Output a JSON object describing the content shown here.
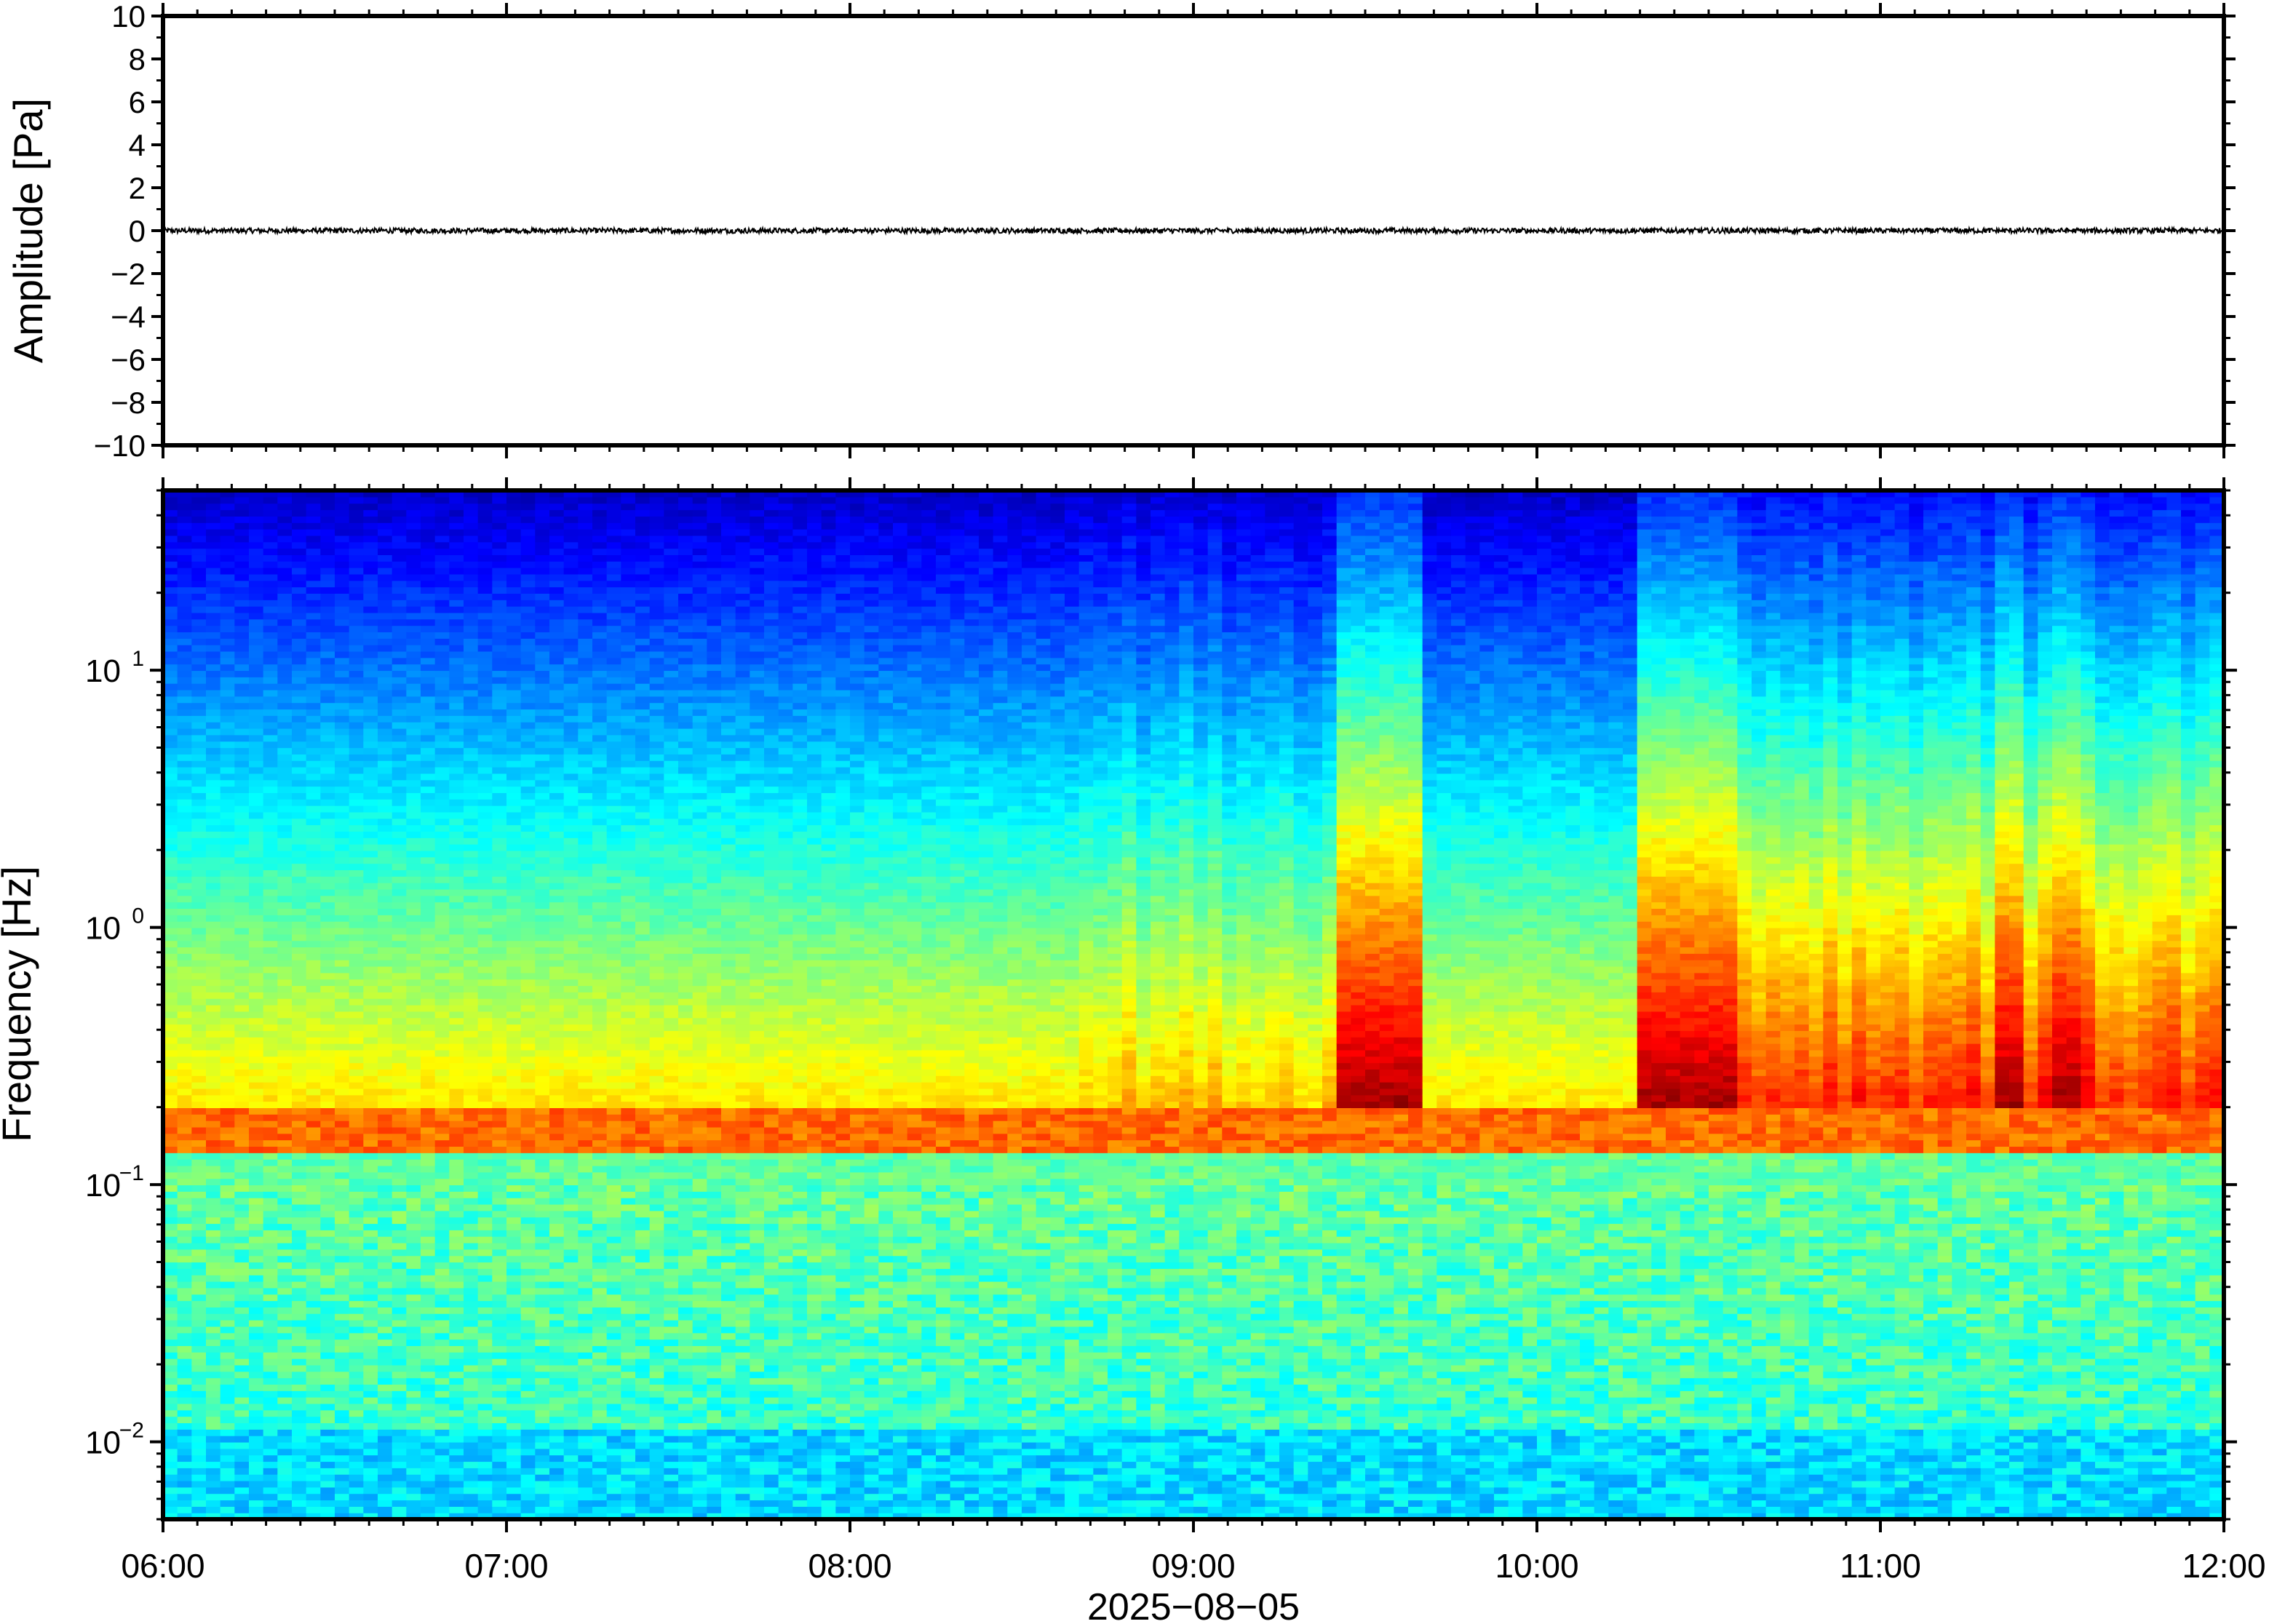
{
  "chart_data": [
    {
      "type": "line",
      "ylabel": "Amplitude [Pa]",
      "ylim": [
        -10,
        10
      ],
      "yticks": [
        "10",
        "8",
        "6",
        "4",
        "2",
        "0",
        "−2",
        "−4",
        "−6",
        "−8",
        "−10"
      ],
      "ytick_values": [
        10,
        8,
        6,
        4,
        2,
        0,
        -2,
        -4,
        -6,
        -8,
        -10
      ],
      "xlim": [
        "06:00",
        "12:00"
      ],
      "series": [
        {
          "values_summary": "pressure trace near 0 Pa, peak-to-peak about 0.2",
          "x": [
            "06:00",
            "12:00"
          ],
          "y": [
            0,
            0
          ],
          "noise_amplitude": 0.12
        }
      ],
      "grid": false,
      "line_color": "#000000"
    },
    {
      "type": "heatmap",
      "ylabel": "Frequency [Hz]",
      "xlabel": "2025−08−05",
      "yscale": "log",
      "ylim": [
        0.005,
        50
      ],
      "yticks": [
        {
          "base": "10",
          "exp": "1",
          "value": 10
        },
        {
          "base": "10",
          "exp": "0",
          "value": 1
        },
        {
          "base": "10",
          "exp": "−1",
          "value": 0.1
        },
        {
          "base": "10",
          "exp": "−2",
          "value": 0.01
        }
      ],
      "xticks": [
        "06:00",
        "07:00",
        "08:00",
        "09:00",
        "10:00",
        "11:00",
        "12:00"
      ],
      "xlim": [
        "06:00",
        "12:00"
      ],
      "colormap": "jet",
      "microbarom_band_hz": [
        0.13,
        0.2
      ],
      "high_energy_time_windows": [
        "09:25-09:40",
        "10:18-10:25",
        "10:25-10:35",
        "11:20-11:25",
        "11:30-11:35"
      ],
      "grid": false
    }
  ]
}
